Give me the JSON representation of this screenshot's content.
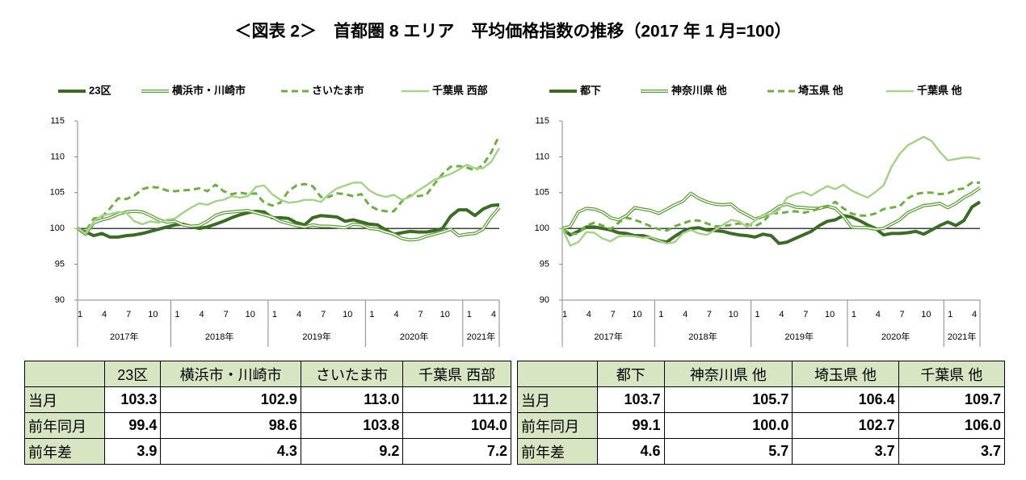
{
  "title": "＜図表 2＞　首都圏 8 エリア　平均価格指数の推移（2017 年 1 月=100）",
  "chart_data": [
    {
      "type": "line",
      "categories": [
        "1",
        null,
        null,
        "4",
        null,
        null,
        "7",
        null,
        null,
        "10",
        null,
        null,
        "1",
        null,
        null,
        "4",
        null,
        null,
        "7",
        null,
        null,
        "10",
        null,
        null,
        "1",
        null,
        null,
        "4",
        null,
        null,
        "7",
        null,
        null,
        "10",
        null,
        null,
        "1",
        null,
        null,
        "4",
        null,
        null,
        "7",
        null,
        null,
        "10",
        null,
        null,
        "1",
        null,
        null,
        "4",
        null
      ],
      "years": [
        "2017年",
        "2018年",
        "2019年",
        "2020年",
        "2021年"
      ],
      "ylim": [
        90,
        115
      ],
      "yticks": [
        90,
        95,
        100,
        105,
        110,
        115
      ],
      "baseline": 100,
      "series": [
        {
          "name": "23区",
          "color": "#3d6b27",
          "style": "solid",
          "width": 4,
          "values": [
            100,
            99.5,
            99,
            99.3,
            98.8,
            98.8,
            99,
            99.1,
            99.3,
            99.6,
            99.9,
            100.2,
            100.5,
            100.6,
            100.3,
            100,
            100.2,
            100.6,
            101,
            101.5,
            101.9,
            102.2,
            102.4,
            102.3,
            101.5,
            101.5,
            101.4,
            100.8,
            100.5,
            101.5,
            101.8,
            101.7,
            101.6,
            101,
            101.2,
            100.9,
            100.6,
            100.5,
            99.8,
            99.2,
            99.4,
            99.6,
            99.5,
            99.5,
            99.7,
            100,
            101.7,
            102.6,
            102.6,
            101.8,
            102.7,
            103.2,
            103.3
          ]
        },
        {
          "name": "横浜市・川崎市",
          "color": "#5f9a3c",
          "style": "double",
          "width": 4,
          "values": [
            100,
            99.2,
            100.8,
            101.2,
            101.5,
            102,
            102.3,
            102.4,
            102.3,
            101.8,
            101.2,
            100.9,
            101,
            100.5,
            100.3,
            100.4,
            101,
            101.8,
            102.2,
            102.3,
            102.4,
            102.5,
            102.2,
            101.9,
            101.6,
            101,
            100.7,
            100.4,
            100.2,
            100.5,
            100.3,
            100.3,
            100.2,
            100.1,
            100.6,
            100.5,
            100,
            99.9,
            99.5,
            99.2,
            98.6,
            98.4,
            98.5,
            98.9,
            99.2,
            99.5,
            99.9,
            99,
            99.2,
            99.3,
            99.9,
            101.6,
            102.9
          ]
        },
        {
          "name": "さいたま市",
          "color": "#70ad47",
          "style": "dashed",
          "width": 3,
          "values": [
            100,
            99.6,
            101.4,
            101.6,
            102.8,
            104.2,
            104.1,
            104.6,
            105.5,
            105.8,
            105.7,
            105.3,
            105.2,
            105.3,
            105.4,
            105.6,
            105.2,
            106.1,
            105.2,
            104.8,
            105,
            104.8,
            104.9,
            103.6,
            103.2,
            103.6,
            105.2,
            106,
            106.2,
            105.9,
            104.4,
            104.4,
            104.9,
            104.8,
            104.5,
            104.8,
            103.2,
            102.6,
            102.4,
            102.4,
            103.8,
            104.6,
            104.5,
            104.7,
            106.2,
            107.6,
            108.6,
            108.7,
            108.5,
            108.1,
            108.9,
            110.6,
            113.0
          ]
        },
        {
          "name": "千葉県 西部",
          "color": "#a9d18e",
          "style": "solid",
          "width": 2.5,
          "values": [
            100,
            99.3,
            101,
            101.8,
            102,
            102.3,
            102.2,
            101,
            100.6,
            101,
            100.8,
            101.2,
            101.4,
            102.2,
            102.9,
            103.5,
            103.3,
            103.8,
            104,
            104.5,
            104.3,
            104.5,
            105.8,
            106,
            104.8,
            104,
            103.6,
            103.7,
            104,
            104,
            103.7,
            104.8,
            105.6,
            106,
            106.4,
            106.4,
            105.3,
            104.7,
            104.4,
            104.7,
            104,
            104.4,
            105.3,
            106,
            106.8,
            107.2,
            107.6,
            108.2,
            108.9,
            108.4,
            108.4,
            109.3,
            111.2
          ]
        }
      ]
    },
    {
      "type": "line",
      "categories": [
        "1",
        null,
        null,
        "4",
        null,
        null,
        "7",
        null,
        null,
        "10",
        null,
        null,
        "1",
        null,
        null,
        "4",
        null,
        null,
        "7",
        null,
        null,
        "10",
        null,
        null,
        "1",
        null,
        null,
        "4",
        null,
        null,
        "7",
        null,
        null,
        "10",
        null,
        null,
        "1",
        null,
        null,
        "4",
        null,
        null,
        "7",
        null,
        null,
        "10",
        null,
        null,
        "1",
        null,
        null,
        "4",
        null
      ],
      "years": [
        "2017年",
        "2018年",
        "2019年",
        "2020年",
        "2021年"
      ],
      "ylim": [
        90,
        115
      ],
      "yticks": [
        90,
        95,
        100,
        105,
        110,
        115
      ],
      "baseline": 100,
      "series": [
        {
          "name": "都下",
          "color": "#3d6b27",
          "style": "solid",
          "width": 4,
          "values": [
            100,
            99.1,
            99.6,
            100.2,
            100.2,
            100,
            99.8,
            99.4,
            99.3,
            99,
            99,
            98.7,
            98.3,
            98.1,
            98.9,
            99.6,
            100,
            100.1,
            99.8,
            99.7,
            99.6,
            99.3,
            99.1,
            99,
            98.8,
            99.2,
            99,
            97.9,
            98.1,
            98.6,
            99.1,
            99.6,
            100.4,
            101,
            101.2,
            101.8,
            101.6,
            101.1,
            100.5,
            100,
            99.1,
            99.3,
            99.3,
            99.4,
            99.6,
            99.2,
            99.8,
            100.4,
            100.9,
            100.4,
            101.1,
            103,
            103.7
          ]
        },
        {
          "name": "神奈川県 他",
          "color": "#5f9a3c",
          "style": "double",
          "width": 4,
          "values": [
            100,
            100.3,
            102.3,
            102.8,
            102.7,
            102.3,
            101.5,
            101.2,
            101.8,
            102.9,
            102.7,
            102.5,
            102.1,
            102.7,
            103.3,
            103.8,
            104.9,
            104.2,
            103.7,
            103.4,
            103.3,
            103.4,
            102.5,
            101.9,
            101.3,
            101.7,
            102.3,
            103.1,
            103.4,
            103,
            102.9,
            102.8,
            102.8,
            103.1,
            102.8,
            101.7,
            100.2,
            100.1,
            100.1,
            99.9,
            100,
            100.6,
            101.2,
            102.2,
            102.7,
            103.2,
            103.3,
            103.5,
            102.9,
            103.5,
            104.3,
            104.9,
            105.7
          ]
        },
        {
          "name": "埼玉県 他",
          "color": "#70ad47",
          "style": "dashed",
          "width": 3,
          "values": [
            100,
            99.2,
            99.3,
            100.4,
            100.8,
            100.4,
            99.9,
            100.8,
            101.5,
            101.2,
            100.8,
            100.3,
            99.9,
            99.7,
            100.3,
            100.7,
            101.1,
            101.1,
            100.7,
            100.3,
            100.3,
            100.5,
            100.7,
            100.6,
            100.3,
            100.9,
            102.2,
            102.1,
            102.3,
            102.4,
            102.2,
            102.4,
            102.8,
            103.1,
            103.7,
            102.8,
            102.1,
            101.8,
            101.8,
            102.1,
            102.7,
            102.9,
            103.1,
            104.2,
            104.8,
            105,
            105,
            104.8,
            104.9,
            105.4,
            105.6,
            106.4,
            106.4
          ]
        },
        {
          "name": "千葉県 他",
          "color": "#a9d18e",
          "style": "solid",
          "width": 2.5,
          "values": [
            100,
            97.6,
            98.1,
            99.5,
            99.4,
            98.6,
            98.2,
            98.9,
            99,
            98.9,
            98.7,
            98.8,
            98.3,
            97.9,
            98.1,
            99.3,
            99.8,
            99.3,
            99.1,
            99.8,
            100.5,
            101.2,
            101,
            100.2,
            101.1,
            101.9,
            102,
            102.6,
            104.3,
            104.8,
            105.1,
            104.6,
            105.3,
            105.9,
            105.5,
            106.1,
            105.3,
            104.8,
            104.3,
            105.1,
            106,
            108.6,
            110.4,
            111.6,
            112.2,
            112.8,
            112.2,
            110.7,
            109.5,
            109.7,
            109.9,
            109.9,
            109.7
          ]
        }
      ]
    }
  ],
  "tables": [
    {
      "columns": [
        "23区",
        "横浜市・川崎市",
        "さいたま市",
        "千葉県 西部"
      ],
      "rows": [
        {
          "label": "当月",
          "values": [
            "103.3",
            "102.9",
            "113.0",
            "111.2"
          ]
        },
        {
          "label": "前年同月",
          "values": [
            "99.4",
            "98.6",
            "103.8",
            "104.0"
          ]
        },
        {
          "label": "前年差",
          "values": [
            "3.9",
            "4.3",
            "9.2",
            "7.2"
          ]
        }
      ]
    },
    {
      "columns": [
        "都下",
        "神奈川県 他",
        "埼玉県 他",
        "千葉県 他"
      ],
      "rows": [
        {
          "label": "当月",
          "values": [
            "103.7",
            "105.7",
            "106.4",
            "109.7"
          ]
        },
        {
          "label": "前年同月",
          "values": [
            "99.1",
            "100.0",
            "102.7",
            "106.0"
          ]
        },
        {
          "label": "前年差",
          "values": [
            "4.6",
            "5.7",
            "3.7",
            "3.7"
          ]
        }
      ]
    }
  ]
}
